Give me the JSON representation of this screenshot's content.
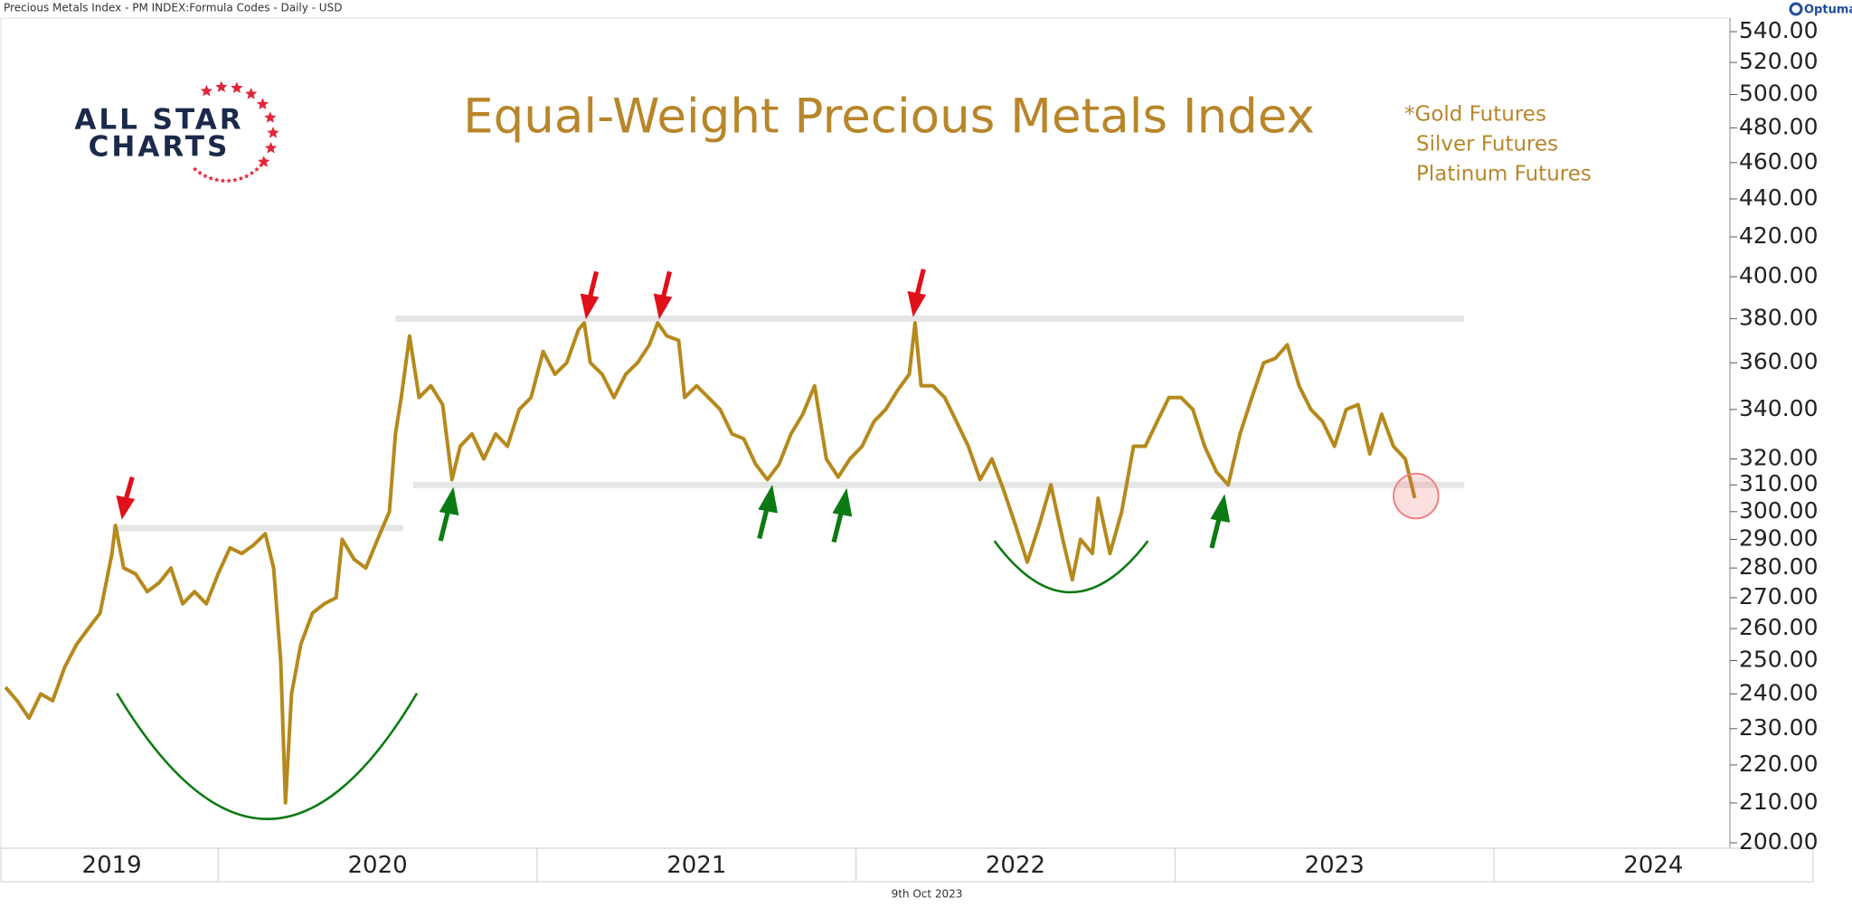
{
  "header": {
    "text": "Precious Metals Index - PM INDEX:Formula Codes - Daily - USD",
    "brand": "Optuma"
  },
  "logo": {
    "line1": "ALL STAR",
    "line2": "CHARTS"
  },
  "footer": {
    "date": "9th Oct 2023"
  },
  "chart_data": {
    "type": "line",
    "title": "Equal-Weight Precious Metals Index",
    "annotations": [
      "*Gold Futures",
      "Silver Futures",
      "Platinum Futures"
    ],
    "log_scale": true,
    "xlim": [
      2019.333,
      2024.74
    ],
    "xticks": [
      2019,
      2020,
      2021,
      2022,
      2023,
      2024
    ],
    "ylim": [
      200,
      540
    ],
    "yticks": [
      {
        "value": 200,
        "label": "200.00"
      },
      {
        "value": 210,
        "label": "210.00"
      },
      {
        "value": 220,
        "label": "220.00"
      },
      {
        "value": 230,
        "label": "230.00"
      },
      {
        "value": 240,
        "label": "240.00"
      },
      {
        "value": 250,
        "label": "250.00"
      },
      {
        "value": 260,
        "label": "260.00"
      },
      {
        "value": 270,
        "label": "270.00"
      },
      {
        "value": 280,
        "label": "280.00"
      },
      {
        "value": 290,
        "label": "290.00"
      },
      {
        "value": 300,
        "label": "300.00"
      },
      {
        "value": 310,
        "label": "310.00"
      },
      {
        "value": 320,
        "label": "320.00"
      },
      {
        "value": 340,
        "label": "340.00"
      },
      {
        "value": 360,
        "label": "360.00"
      },
      {
        "value": 380,
        "label": "380.00"
      },
      {
        "value": 400,
        "label": "400.00"
      },
      {
        "value": 420,
        "label": "420.00"
      },
      {
        "value": 440,
        "label": "440.00"
      },
      {
        "value": 460,
        "label": "460.00"
      },
      {
        "value": 480,
        "label": "480.00"
      },
      {
        "value": 500,
        "label": "500.00"
      },
      {
        "value": 520,
        "label": "520.00"
      },
      {
        "value": 540,
        "label": "540.00"
      }
    ],
    "levels": [
      {
        "value": 380,
        "x": [
          2020.556,
          2023.907
        ]
      },
      {
        "value": 310,
        "x": [
          2020.611,
          2023.907
        ]
      },
      {
        "value": 294,
        "x": [
          2019.667,
          2020.581
        ]
      }
    ],
    "x": [
      2019.333,
      2019.37,
      2019.407,
      2019.444,
      2019.481,
      2019.519,
      2019.556,
      2019.593,
      2019.63,
      2019.667,
      2019.678,
      2019.704,
      2019.741,
      2019.778,
      2019.815,
      2019.852,
      2019.889,
      2019.926,
      2019.963,
      2020.0,
      2020.037,
      2020.074,
      2020.111,
      2020.148,
      2020.174,
      2020.196,
      2020.211,
      2020.23,
      2020.259,
      2020.296,
      2020.333,
      2020.37,
      2020.389,
      2020.426,
      2020.463,
      2020.5,
      2020.537,
      2020.556,
      2020.574,
      2020.6,
      2020.63,
      2020.667,
      2020.704,
      2020.733,
      2020.759,
      2020.796,
      2020.833,
      2020.87,
      2020.907,
      2020.944,
      2020.981,
      2021.019,
      2021.056,
      2021.093,
      2021.13,
      2021.148,
      2021.167,
      2021.204,
      2021.241,
      2021.278,
      2021.315,
      2021.352,
      2021.378,
      2021.407,
      2021.444,
      2021.463,
      2021.5,
      2021.537,
      2021.574,
      2021.611,
      2021.648,
      2021.685,
      2021.722,
      2021.759,
      2021.796,
      2021.833,
      2021.87,
      2021.907,
      2021.944,
      2021.981,
      2022.019,
      2022.056,
      2022.093,
      2022.13,
      2022.167,
      2022.185,
      2022.204,
      2022.241,
      2022.278,
      2022.315,
      2022.352,
      2022.389,
      2022.426,
      2022.463,
      2022.5,
      2022.537,
      2022.574,
      2022.611,
      2022.648,
      2022.678,
      2022.704,
      2022.741,
      2022.759,
      2022.796,
      2022.833,
      2022.87,
      2022.907,
      2022.944,
      2022.981,
      2023.019,
      2023.056,
      2023.093,
      2023.13,
      2023.167,
      2023.204,
      2023.241,
      2023.278,
      2023.315,
      2023.352,
      2023.389,
      2023.426,
      2023.463,
      2023.5,
      2023.537,
      2023.574,
      2023.611,
      2023.648,
      2023.685,
      2023.722,
      2023.752
    ],
    "series": [
      {
        "color": "#b5891c",
        "values": [
          242,
          238,
          233,
          240,
          238,
          248,
          255,
          260,
          265,
          285,
          295,
          280,
          278,
          272,
          275,
          280,
          268,
          272,
          268,
          278,
          287,
          285,
          288,
          292,
          280,
          250,
          210,
          240,
          255,
          265,
          268,
          270,
          290,
          283,
          280,
          290,
          300,
          330,
          345,
          372,
          345,
          350,
          342,
          312,
          325,
          330,
          320,
          330,
          325,
          340,
          345,
          365,
          355,
          360,
          375,
          378,
          360,
          355,
          345,
          355,
          360,
          368,
          378,
          372,
          370,
          345,
          350,
          345,
          340,
          330,
          328,
          318,
          312,
          318,
          330,
          338,
          350,
          320,
          313,
          320,
          325,
          335,
          340,
          348,
          355,
          378,
          350,
          350,
          345,
          335,
          325,
          312,
          320,
          308,
          295,
          282,
          295,
          310,
          290,
          276,
          290,
          285,
          305,
          285,
          300,
          325,
          325,
          335,
          345,
          345,
          340,
          325,
          315,
          310,
          330,
          345,
          360,
          362,
          368,
          350,
          340,
          335,
          325,
          340,
          342,
          322,
          338,
          325,
          320,
          305
        ]
      }
    ]
  }
}
